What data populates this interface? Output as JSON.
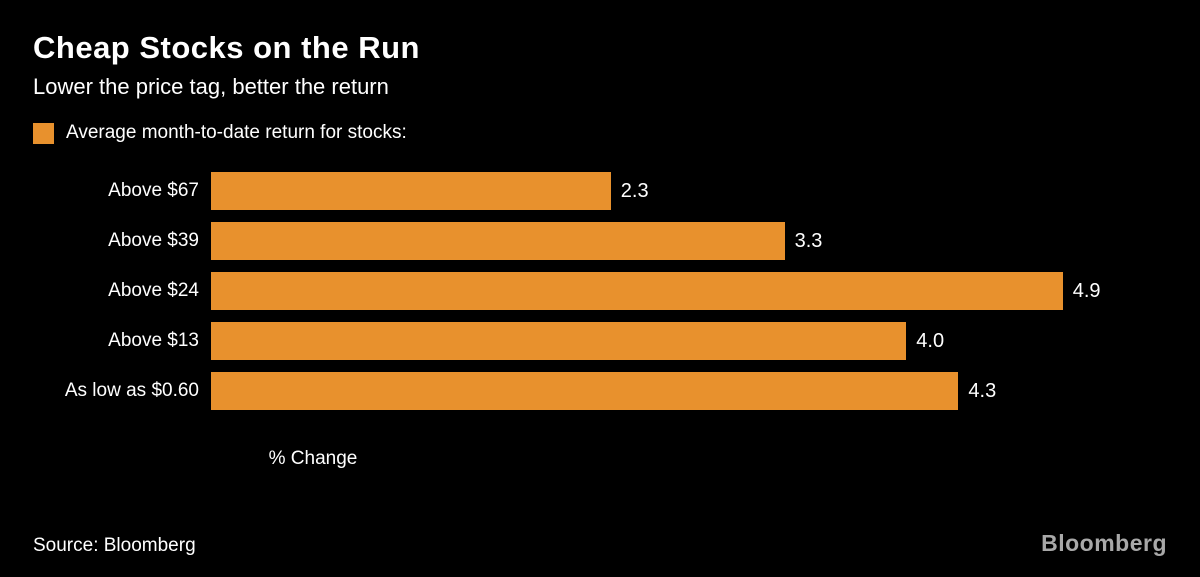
{
  "header": {
    "title": "Cheap Stocks on the Run",
    "subtitle": "Lower the price tag, better the return"
  },
  "legend": {
    "label": "Average month-to-date return for stocks:",
    "swatch_color": "#e8912d"
  },
  "chart_data": {
    "type": "bar",
    "orientation": "horizontal",
    "categories": [
      "Above $67",
      "Above $39",
      "Above $24",
      "Above $13",
      "As low as $0.60"
    ],
    "values": [
      2.3,
      3.3,
      4.9,
      4.0,
      4.3
    ],
    "value_labels": [
      "2.3",
      "3.3",
      "4.9",
      "4.0",
      "4.3"
    ],
    "title": "Cheap Stocks on the Run",
    "subtitle": "Lower the price tag, better the return",
    "xlabel": "% Change",
    "ylabel": "",
    "xlim": [
      0,
      5.5
    ],
    "grid": false,
    "legend_position": "top-left",
    "bar_color": "#e8912d",
    "background_color": "#000000"
  },
  "axis": {
    "xlabel": "% Change"
  },
  "footer": {
    "source": "Source: Bloomberg",
    "brand": "Bloomberg"
  }
}
